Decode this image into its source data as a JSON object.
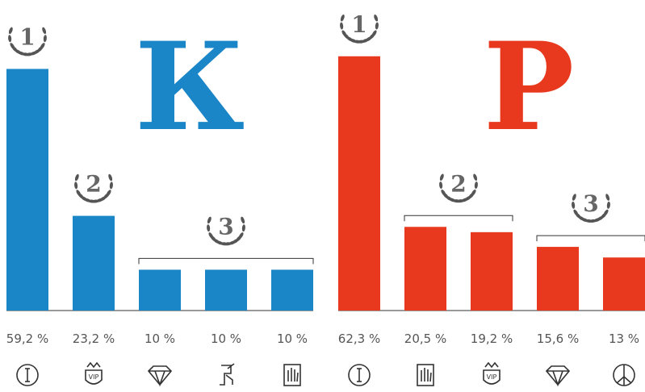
{
  "chart_data": [
    {
      "type": "bar",
      "title": "К",
      "color": "#1a86c8",
      "values": [
        59.2,
        23.2,
        10,
        10,
        10
      ],
      "value_labels": [
        "59,2 %",
        "23,2 %",
        "10 %",
        "10 %",
        "10 %"
      ],
      "ranks": [
        "1",
        "2",
        "3",
        null,
        null
      ]
    },
    {
      "type": "bar",
      "title": "Р",
      "color": "#e8391f",
      "values": [
        62.3,
        20.5,
        19.2,
        15.6,
        13
      ],
      "value_labels": [
        "62,3 %",
        "20,5 %",
        "19,2 %",
        "15,6 %",
        "13 %"
      ],
      "ranks": [
        "1",
        "2",
        null,
        "3",
        null
      ]
    }
  ],
  "icon_text": "VIP"
}
